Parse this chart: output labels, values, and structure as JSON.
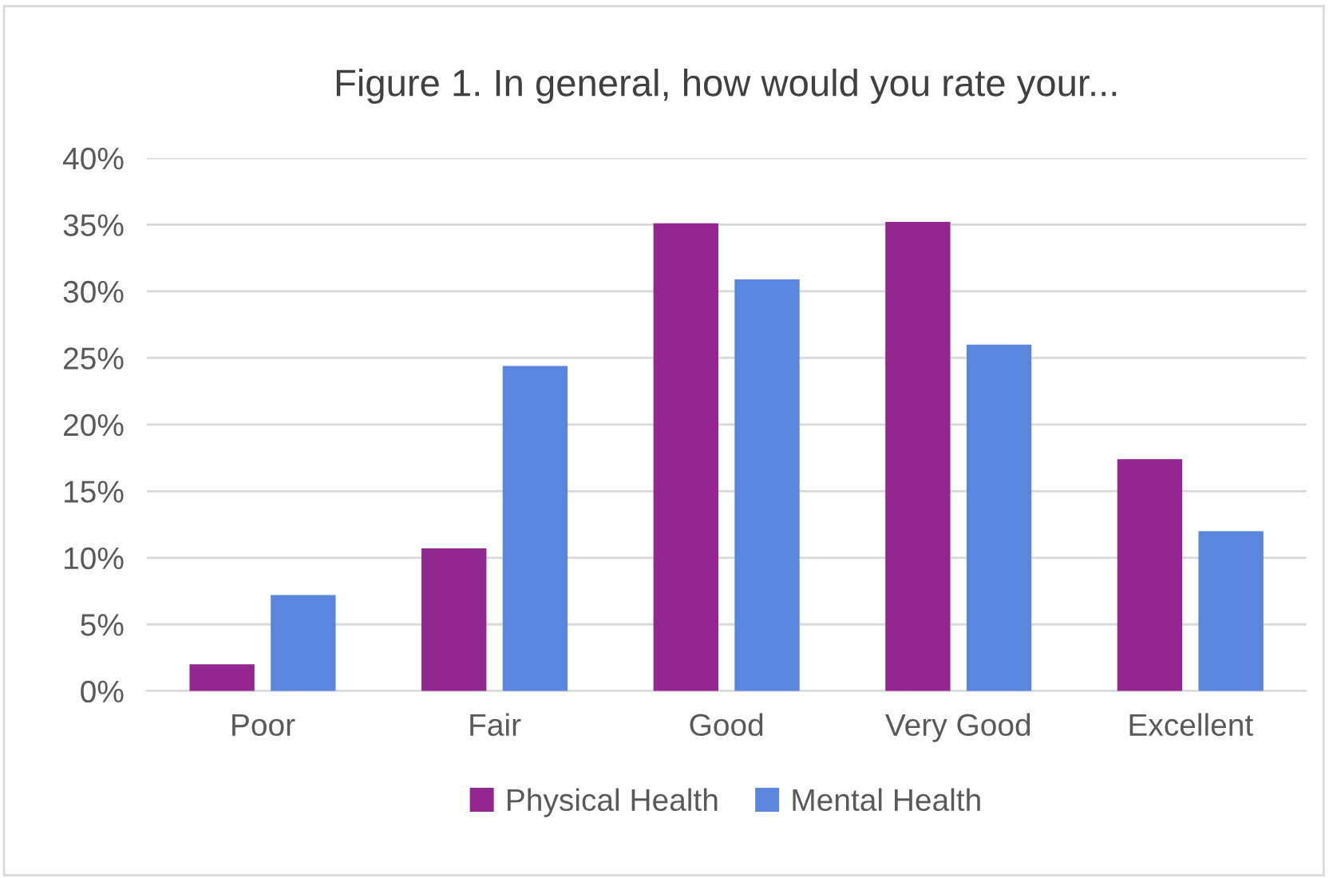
{
  "chart_data": {
    "type": "bar",
    "title": "Figure 1. In general, how would you rate your...",
    "categories": [
      "Poor",
      "Fair",
      "Good",
      "Very Good",
      "Excellent"
    ],
    "series": [
      {
        "name": "Physical Health",
        "color": "#92278f",
        "values": [
          0.02,
          0.107,
          0.351,
          0.352,
          0.174
        ]
      },
      {
        "name": "Mental Health",
        "color": "#5b86dd",
        "values": [
          0.072,
          0.244,
          0.309,
          0.26,
          0.12
        ]
      }
    ],
    "ylim": [
      0,
      0.4
    ],
    "yticks": [
      {
        "value": 0,
        "label": "0%"
      },
      {
        "value": 0.05,
        "label": "5%"
      },
      {
        "value": 0.1,
        "label": "10%"
      },
      {
        "value": 0.15,
        "label": "15%"
      },
      {
        "value": 0.2,
        "label": "20%"
      },
      {
        "value": 0.25,
        "label": "25%"
      },
      {
        "value": 0.3,
        "label": "30%"
      },
      {
        "value": 0.35,
        "label": "35%"
      },
      {
        "value": 0.4,
        "label": "40%"
      }
    ],
    "grid": "y",
    "legend": "bottom"
  }
}
